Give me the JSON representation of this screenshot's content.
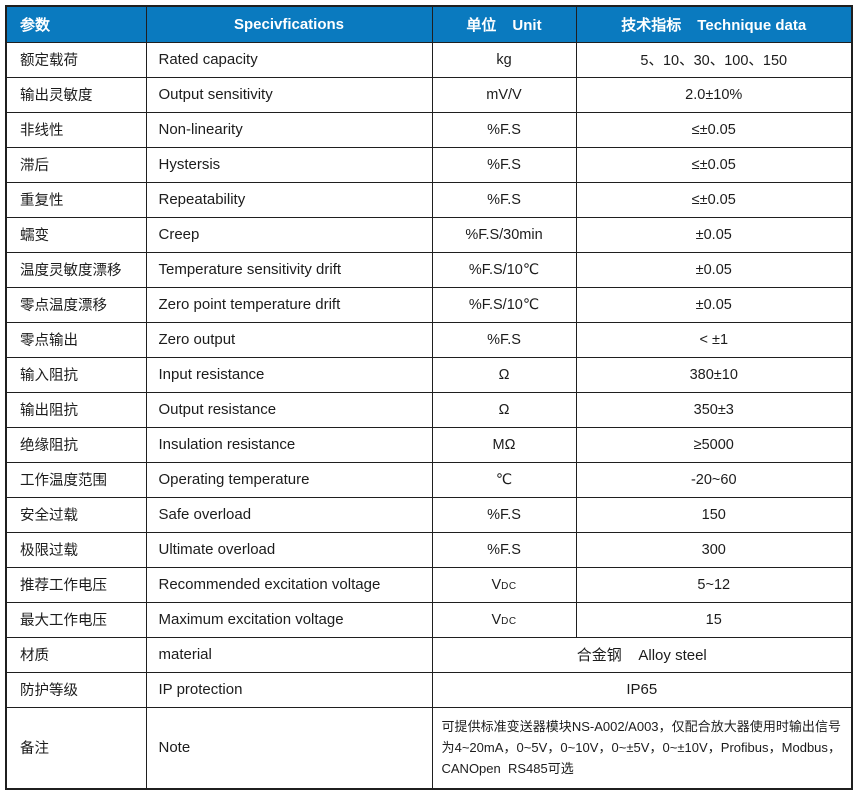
{
  "colors": {
    "header_bg": "#0a7abf",
    "header_text": "#ffffff",
    "border": "#1f1f1f",
    "text": "#1c1c1c"
  },
  "header": {
    "param_cn": "参数",
    "spec": "Specivfications",
    "unit_cn": "单位",
    "unit_en": "Unit",
    "data_cn": "技术指标",
    "data_en": "Technique data"
  },
  "rows": [
    {
      "cn": "额定载荷",
      "en": "Rated capacity",
      "unit": "kg",
      "value": "5、10、30、100、150"
    },
    {
      "cn": "输出灵敏度",
      "en": "Output sensitivity",
      "unit": "mV/V",
      "value": "2.0±10%"
    },
    {
      "cn": "非线性",
      "en": "Non-linearity",
      "unit": "%F.S",
      "value": "≤±0.05"
    },
    {
      "cn": "滞后",
      "en": "Hystersis",
      "unit": "%F.S",
      "value": "≤±0.05"
    },
    {
      "cn": "重复性",
      "en": "Repeatability",
      "unit": "%F.S",
      "value": "≤±0.05"
    },
    {
      "cn": "蠕变",
      "en": "Creep",
      "unit": "%F.S/30min",
      "value": "±0.05"
    },
    {
      "cn": "温度灵敏度漂移",
      "en": "Temperature sensitivity drift",
      "unit": "%F.S/10℃",
      "value": "±0.05"
    },
    {
      "cn": "零点温度漂移",
      "en": "Zero point temperature drift",
      "unit": "%F.S/10℃",
      "value": "±0.05"
    },
    {
      "cn": "零点输出",
      "en": "Zero output",
      "unit": "%F.S",
      "value": "< ±1"
    },
    {
      "cn": "输入阻抗",
      "en": "Input resistance",
      "unit": "Ω",
      "value": "380±10"
    },
    {
      "cn": "输出阻抗",
      "en": "Output resistance",
      "unit": "Ω",
      "value": "350±3"
    },
    {
      "cn": "绝缘阻抗",
      "en": "Insulation resistance",
      "unit": "MΩ",
      "value": "≥5000"
    },
    {
      "cn": "工作温度范围",
      "en": "Operating temperature",
      "unit": "℃",
      "value": "-20~60"
    },
    {
      "cn": "安全过载",
      "en": "Safe overload",
      "unit": "%F.S",
      "value": "150"
    },
    {
      "cn": "极限过载",
      "en": "Ultimate overload",
      "unit": "%F.S",
      "value": "300"
    },
    {
      "cn": "推荐工作电压",
      "en": "Recommended excitation voltage",
      "unit": "V",
      "unit_sub": "DC",
      "value": "5~12"
    },
    {
      "cn": "最大工作电压",
      "en": "Maximum excitation voltage",
      "unit": "V",
      "unit_sub": "DC",
      "value": "15"
    },
    {
      "cn": "材质",
      "en": "material",
      "merged": true,
      "value": "合金钢    Alloy steel"
    },
    {
      "cn": "防护等级",
      "en": "IP protection",
      "merged": true,
      "value": "IP65"
    },
    {
      "cn": "备注",
      "en": "Note",
      "merged": true,
      "note": true,
      "value": "可提供标准变送器模块NS-A002/A003，仅配合放大器使用时输出信号为4~20mA，0~5V，0~10V，0~±5V，0~±10V，Profibus，Modbus，CANOpen  RS485可选"
    }
  ]
}
